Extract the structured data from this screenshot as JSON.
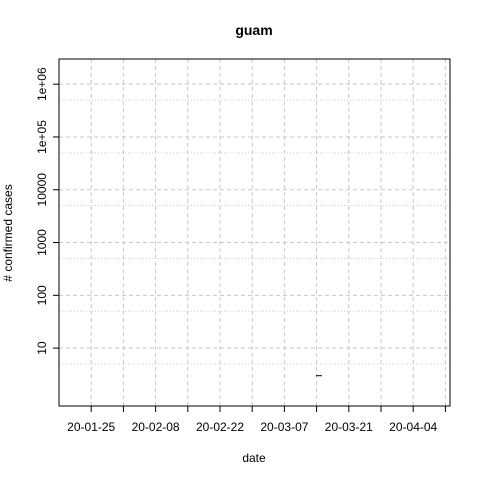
{
  "chart_data": {
    "type": "line",
    "title": "guam",
    "xlabel": "date",
    "ylabel": "# confirmed cases",
    "x_scale": "date",
    "y_scale": "log10",
    "xlim": [
      "2020-01-18",
      "2020-04-12"
    ],
    "ylim": [
      0.8,
      3000000
    ],
    "x_ticks": [
      {
        "date": "2020-01-25",
        "label": "20-01-25"
      },
      {
        "date": "2020-02-08",
        "label": "20-02-08"
      },
      {
        "date": "2020-02-22",
        "label": "20-02-22"
      },
      {
        "date": "2020-03-07",
        "label": "20-03-07"
      },
      {
        "date": "2020-03-21",
        "label": "20-03-21"
      },
      {
        "date": "2020-04-04",
        "label": "20-04-04"
      }
    ],
    "x_minor_gridlines": [
      "2020-01-25",
      "2020-02-01",
      "2020-02-08",
      "2020-02-15",
      "2020-02-22",
      "2020-02-29",
      "2020-03-07",
      "2020-03-14",
      "2020-03-21",
      "2020-03-28",
      "2020-04-04",
      "2020-04-11"
    ],
    "y_ticks": [
      {
        "value": 10,
        "label": "10"
      },
      {
        "value": 100,
        "label": "100"
      },
      {
        "value": 1000,
        "label": "1000"
      },
      {
        "value": 10000,
        "label": "10000"
      },
      {
        "value": 100000,
        "label": "1e+05"
      },
      {
        "value": 1000000,
        "label": "1e+06"
      }
    ],
    "y_minor_gridlines": [
      5,
      50,
      500,
      5000,
      50000,
      500000
    ],
    "grid": true,
    "series": [
      {
        "points": [
          {
            "x": "2020-03-14",
            "y": 3
          },
          {
            "x": "2020-03-15",
            "y": 3
          }
        ],
        "color": "#000000"
      }
    ]
  }
}
